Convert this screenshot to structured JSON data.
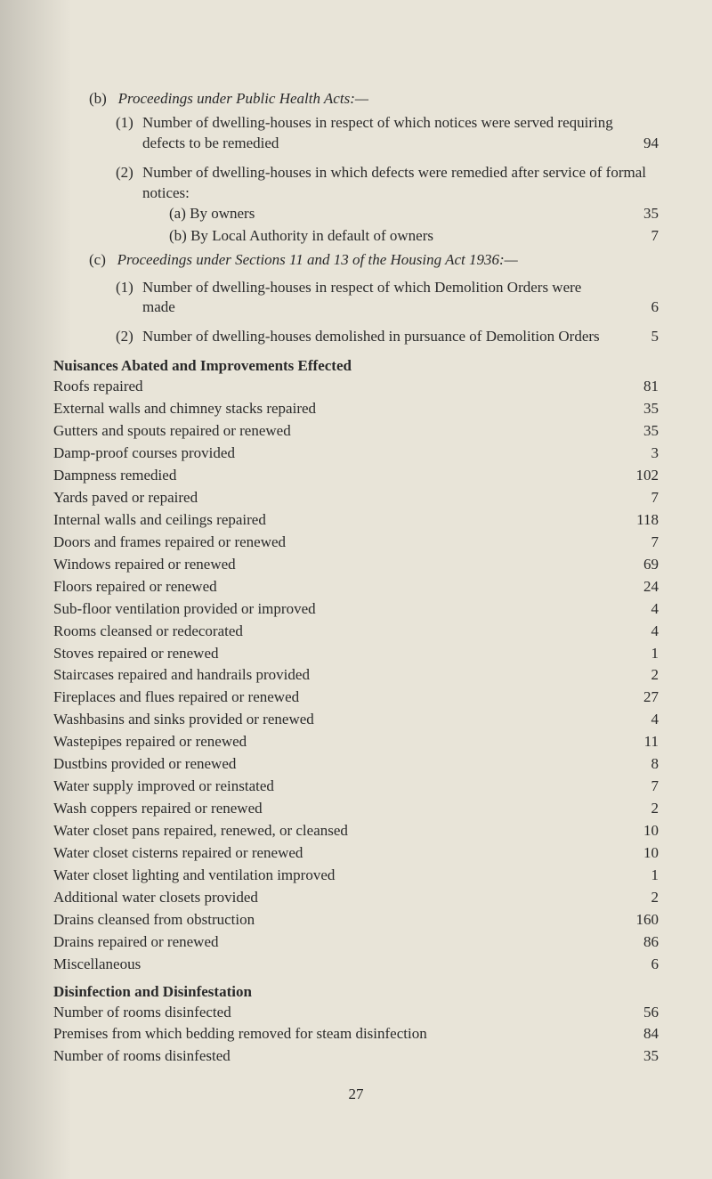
{
  "section_b": {
    "marker": "(b)",
    "title": "Proceedings under Public Health Acts:—",
    "items": [
      {
        "num": "(1)",
        "text": "Number of dwelling-houses in respect of which notices were served requiring defects to be remedied",
        "value": "94"
      },
      {
        "num": "(2)",
        "text": "Number of dwelling-houses in which defects were remedied after service of formal notices:",
        "subitems": [
          {
            "marker": "(a)",
            "text": "By owners",
            "value": "35"
          },
          {
            "marker": "(b)",
            "text": "By Local Authority in default of owners",
            "value": "7"
          }
        ]
      }
    ]
  },
  "section_c": {
    "marker": "(c)",
    "title": "Proceedings under Sections 11 and 13 of the Housing Act 1936:—",
    "items": [
      {
        "num": "(1)",
        "text": "Number of dwelling-houses in respect of which Demolition Orders were made",
        "value": "6"
      },
      {
        "num": "(2)",
        "text": "Number of dwelling-houses demolished in pursuance of Demolition Orders",
        "value": "5"
      }
    ]
  },
  "nuisances": {
    "heading": "Nuisances Abated and Improvements Effected",
    "items": [
      {
        "label": "Roofs repaired",
        "value": "81"
      },
      {
        "label": "External walls and chimney stacks repaired",
        "value": "35"
      },
      {
        "label": "Gutters and spouts repaired or renewed",
        "value": "35"
      },
      {
        "label": "Damp-proof courses provided",
        "value": "3"
      },
      {
        "label": "Dampness remedied",
        "value": "102"
      },
      {
        "label": "Yards paved or repaired",
        "value": "7"
      },
      {
        "label": "Internal walls and ceilings repaired",
        "value": "118"
      },
      {
        "label": "Doors and frames repaired or renewed",
        "value": "7"
      },
      {
        "label": "Windows repaired or renewed",
        "value": "69"
      },
      {
        "label": "Floors repaired or renewed",
        "value": "24"
      },
      {
        "label": "Sub-floor ventilation provided or improved",
        "value": "4"
      },
      {
        "label": "Rooms cleansed or redecorated",
        "value": "4"
      },
      {
        "label": "Stoves repaired or renewed",
        "value": "1"
      },
      {
        "label": "Staircases repaired and handrails provided",
        "value": "2"
      },
      {
        "label": "Fireplaces and flues repaired or renewed",
        "value": "27"
      },
      {
        "label": "Washbasins and sinks provided or renewed",
        "value": "4"
      },
      {
        "label": "Wastepipes repaired or renewed",
        "value": "11"
      },
      {
        "label": "Dustbins provided or renewed",
        "value": "8"
      },
      {
        "label": "Water supply improved or reinstated",
        "value": "7"
      },
      {
        "label": "Wash coppers repaired or renewed",
        "value": "2"
      },
      {
        "label": "Water closet pans repaired, renewed, or cleansed",
        "value": "10"
      },
      {
        "label": "Water closet cisterns repaired or renewed",
        "value": "10"
      },
      {
        "label": "Water closet lighting and ventilation improved",
        "value": "1"
      },
      {
        "label": "Additional water closets provided",
        "value": "2"
      },
      {
        "label": "Drains cleansed from obstruction",
        "value": "160"
      },
      {
        "label": "Drains repaired or renewed",
        "value": "86"
      },
      {
        "label": "Miscellaneous",
        "value": "6"
      }
    ]
  },
  "disinfection": {
    "heading": "Disinfection and Disinfestation",
    "items": [
      {
        "label": "Number of rooms disinfected",
        "value": "56"
      },
      {
        "label": "Premises from which bedding removed for steam disinfection",
        "value": "84"
      },
      {
        "label": "Number of rooms disinfested",
        "value": "35"
      }
    ]
  },
  "page_number": "27"
}
